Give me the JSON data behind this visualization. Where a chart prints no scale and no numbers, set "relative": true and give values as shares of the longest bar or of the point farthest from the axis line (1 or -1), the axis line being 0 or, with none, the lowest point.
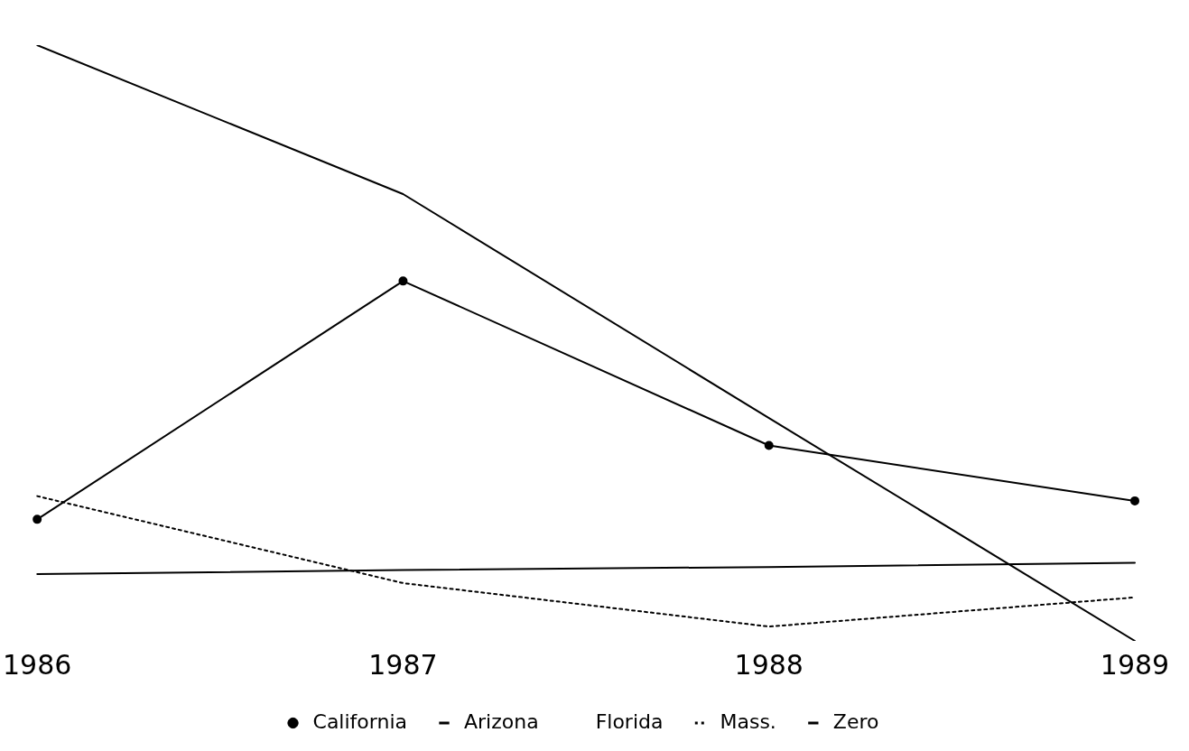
{
  "chart_data": {
    "type": "line",
    "relative": true,
    "categories": [
      "1986",
      "1987",
      "1988",
      "1989"
    ],
    "legend": "bottom",
    "series": [
      {
        "name": "California",
        "color": "#000000",
        "marker": "circle",
        "line_style": "solid",
        "values": [
          0.204,
          0.604,
          0.328,
          0.235
        ]
      },
      {
        "name": "Arizona",
        "color": "#000000",
        "marker": "none",
        "line_style": "solid",
        "values": [
          1.0,
          0.75,
          0.374,
          0
        ]
      },
      {
        "name": "Florida",
        "marker": "none",
        "line_style": "solid",
        "values": [
          null,
          null,
          null,
          null
        ]
      },
      {
        "name": "Mass.",
        "color": "#000000",
        "marker": "none",
        "line_style": "dotted",
        "values": [
          0.243,
          0.097,
          0.024,
          0.073
        ]
      },
      {
        "name": "Zero",
        "color": "#000000",
        "marker": "none",
        "line_style": "solid",
        "values": [
          0.112,
          0.119,
          0.124,
          0.131
        ]
      }
    ]
  }
}
